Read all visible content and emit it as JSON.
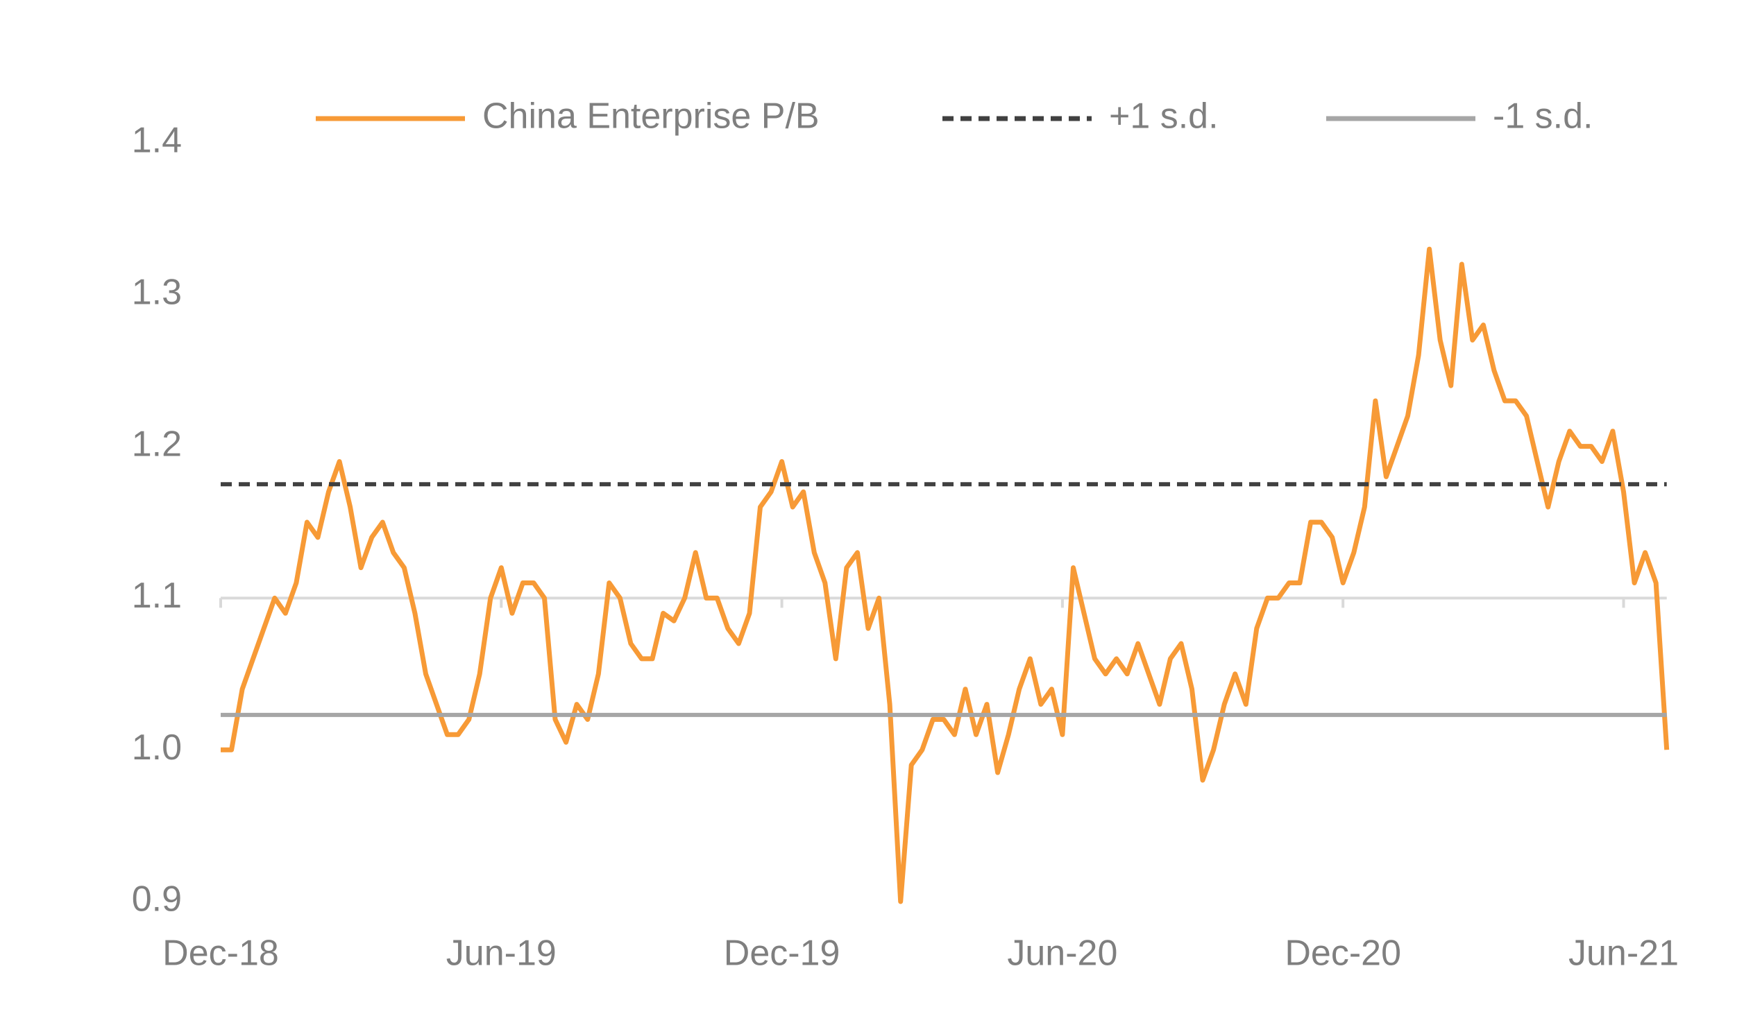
{
  "chart_data": {
    "type": "line",
    "categories": [
      "Dec-18",
      null,
      null,
      null,
      null,
      null,
      null,
      null,
      null,
      null,
      null,
      null,
      null,
      null,
      null,
      null,
      null,
      null,
      null,
      null,
      null,
      null,
      null,
      null,
      null,
      null,
      "Jun-19",
      null,
      null,
      null,
      null,
      null,
      null,
      null,
      null,
      null,
      null,
      null,
      null,
      null,
      null,
      null,
      null,
      null,
      null,
      null,
      null,
      null,
      null,
      null,
      null,
      null,
      "Dec-19",
      null,
      null,
      null,
      null,
      null,
      null,
      null,
      null,
      null,
      null,
      null,
      null,
      null,
      null,
      null,
      null,
      null,
      null,
      null,
      null,
      null,
      null,
      null,
      null,
      null,
      "Jun-20",
      null,
      null,
      null,
      null,
      null,
      null,
      null,
      null,
      null,
      null,
      null,
      null,
      null,
      null,
      null,
      null,
      null,
      null,
      null,
      null,
      null,
      null,
      null,
      null,
      null,
      "Dec-20",
      null,
      null,
      null,
      null,
      null,
      null,
      null,
      null,
      null,
      null,
      null,
      null,
      null,
      null,
      null,
      null,
      null,
      null,
      null,
      null,
      null,
      null,
      null,
      null,
      null,
      "Jun-21",
      null,
      null,
      null,
      null
    ],
    "series": [
      {
        "name": "China Enterprise P/B",
        "color": "#f79a36",
        "values": [
          1.0,
          1.0,
          1.04,
          1.06,
          1.08,
          1.1,
          1.09,
          1.11,
          1.15,
          1.14,
          1.17,
          1.19,
          1.16,
          1.12,
          1.14,
          1.15,
          1.13,
          1.12,
          1.09,
          1.05,
          1.03,
          1.01,
          1.01,
          1.02,
          1.05,
          1.1,
          1.12,
          1.09,
          1.11,
          1.11,
          1.1,
          1.02,
          1.005,
          1.03,
          1.02,
          1.05,
          1.11,
          1.1,
          1.07,
          1.06,
          1.06,
          1.09,
          1.085,
          1.1,
          1.13,
          1.1,
          1.1,
          1.08,
          1.07,
          1.09,
          1.16,
          1.17,
          1.19,
          1.16,
          1.17,
          1.13,
          1.11,
          1.06,
          1.12,
          1.13,
          1.08,
          1.1,
          1.03,
          0.9,
          0.99,
          1.0,
          1.02,
          1.02,
          1.01,
          1.04,
          1.01,
          1.03,
          0.985,
          1.01,
          1.04,
          1.06,
          1.03,
          1.04,
          1.01,
          1.12,
          1.09,
          1.06,
          1.05,
          1.06,
          1.05,
          1.07,
          1.05,
          1.03,
          1.06,
          1.07,
          1.04,
          0.98,
          1.0,
          1.03,
          1.05,
          1.03,
          1.08,
          1.1,
          1.1,
          1.11,
          1.11,
          1.15,
          1.15,
          1.14,
          1.11,
          1.13,
          1.16,
          1.23,
          1.18,
          1.2,
          1.22,
          1.26,
          1.33,
          1.27,
          1.24,
          1.32,
          1.27,
          1.28,
          1.25,
          1.23,
          1.23,
          1.22,
          1.19,
          1.16,
          1.19,
          1.21,
          1.2,
          1.2,
          1.19,
          1.21,
          1.17,
          1.11,
          1.13,
          1.11,
          1.0
        ]
      },
      {
        "name": "+1 s.d.",
        "color": "#404040",
        "value": 1.175,
        "style": "dashed"
      },
      {
        "name": "-1 s.d.",
        "color": "#a6a6a6",
        "value": 1.023,
        "style": "solid"
      }
    ],
    "ylim": [
      0.9,
      1.4
    ],
    "yticks": [
      0.9,
      {
        "value": 1,
        "label": "1.0"
      },
      1.1,
      1.2,
      1.3,
      1.4
    ],
    "x_axis_at": 1.1,
    "x_axis_color": "#d9d9d9",
    "legend": "top"
  }
}
